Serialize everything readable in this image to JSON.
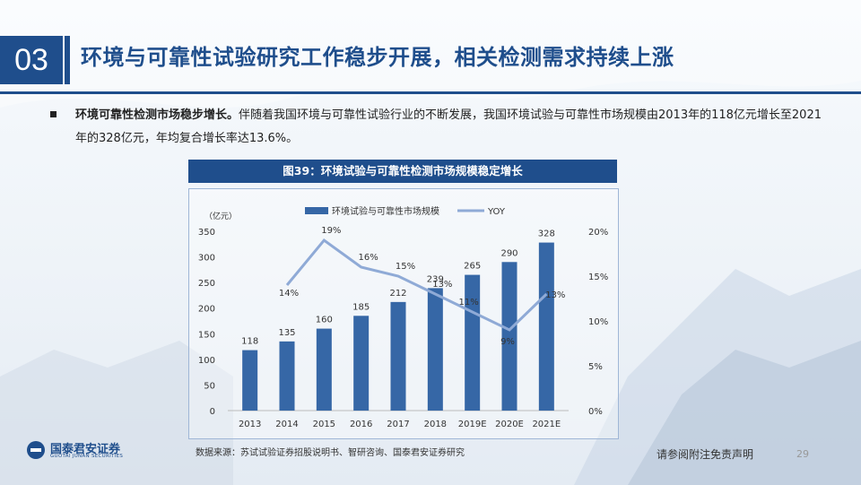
{
  "header": {
    "section_number": "03",
    "title": "环境与可靠性试验研究工作稳步开展，相关检测需求持续上涨"
  },
  "body": {
    "bold_lead": "环境可靠性检测市场稳步增长。",
    "text": "伴随着我国环境与可靠性试验行业的不断发展，我国环境试验与可靠性市场规模由2013年的118亿元增长至2021年的328亿元，年均复合增长率达13.6%。"
  },
  "figure": {
    "title": "图39：环境试验与可靠性检测市场规模稳定增长"
  },
  "chart_data": {
    "type": "bar",
    "categories": [
      "2013",
      "2014",
      "2015",
      "2016",
      "2017",
      "2018",
      "2019E",
      "2020E",
      "2021E"
    ],
    "series": [
      {
        "name": "环境试验与可靠性市场规模",
        "type": "bar",
        "values": [
          118,
          135,
          160,
          185,
          212,
          239,
          265,
          290,
          328
        ],
        "labels": [
          "118",
          "135",
          "160",
          "185",
          "212",
          "239",
          "265",
          "290",
          "328"
        ]
      },
      {
        "name": "YOY",
        "type": "line",
        "axis": "right",
        "x": [
          "2014",
          "2015",
          "2016",
          "2017",
          "2018",
          "2019E",
          "2020E",
          "2021E"
        ],
        "values": [
          14,
          19,
          16,
          15,
          13,
          11,
          9,
          13
        ],
        "labels": [
          "14%",
          "19%",
          "16%",
          "15%",
          "13%",
          "11%",
          "9%",
          "13%"
        ]
      }
    ],
    "y_unit": "（亿元）",
    "ylim": [
      0,
      350
    ],
    "yticks": [
      "0",
      "50",
      "100",
      "150",
      "200",
      "250",
      "300",
      "350"
    ],
    "y2lim": [
      0,
      20
    ],
    "y2ticks": [
      "0%",
      "5%",
      "10%",
      "15%",
      "20%"
    ],
    "legend_position": "top",
    "colors": {
      "bar": "#3667a6",
      "line": "#8faad6"
    }
  },
  "footer": {
    "source": "数据来源：苏试试验证券招股说明书、智研咨询、国泰君安证券研究",
    "disclaimer": "请参阅附注免责声明",
    "page_number": "29",
    "logo_cn": "国泰君安证券",
    "logo_en": "GUOTAI JUNAN SECURITIES"
  }
}
